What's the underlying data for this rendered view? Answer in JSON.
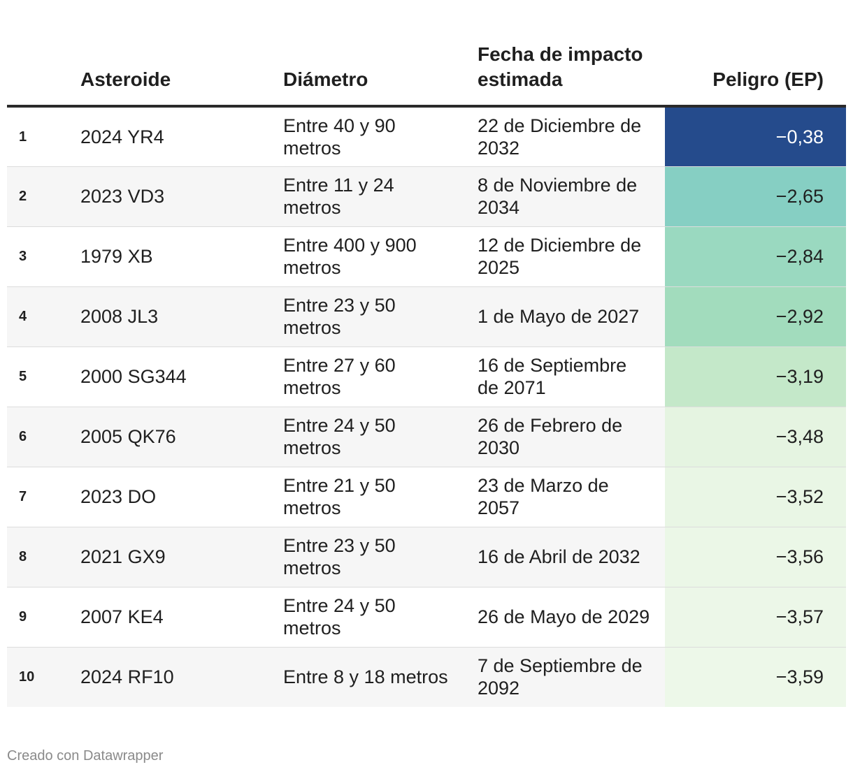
{
  "chart_data": {
    "type": "table",
    "columns": [
      "",
      "Asteroide",
      "Diámetro",
      "Fecha de impacto estimada",
      "Peligro (EP)"
    ],
    "rows": [
      {
        "rank": "1",
        "name": "2024 YR4",
        "diameter": "Entre 40 y 90 metros",
        "date": "22 de Diciembre de 2032",
        "ep": "−0,38",
        "ep_value": -0.38,
        "color": "#254b8c"
      },
      {
        "rank": "2",
        "name": "2023 VD3",
        "diameter": "Entre 11 y 24 metros",
        "date": "8 de Noviembre de 2034",
        "ep": "−2,65",
        "ep_value": -2.65,
        "color": "#86cfc3"
      },
      {
        "rank": "3",
        "name": "1979 XB",
        "diameter": "Entre 400 y 900 metros",
        "date": "12 de Diciembre de 2025",
        "ep": "−2,84",
        "ep_value": -2.84,
        "color": "#9ad9c0"
      },
      {
        "rank": "4",
        "name": "2008 JL3",
        "diameter": "Entre 23 y 50 metros",
        "date": "1 de Mayo de 2027",
        "ep": "−2,92",
        "ep_value": -2.92,
        "color": "#a2dcbd"
      },
      {
        "rank": "5",
        "name": "2000 SG344",
        "diameter": "Entre 27 y 60 metros",
        "date": "16 de Septiembre de 2071",
        "ep": "−3,19",
        "ep_value": -3.19,
        "color": "#c4e8c9"
      },
      {
        "rank": "6",
        "name": "2005 QK76",
        "diameter": "Entre 24 y 50 metros",
        "date": "26 de Febrero de 2030",
        "ep": "−3,48",
        "ep_value": -3.48,
        "color": "#e5f4e1"
      },
      {
        "rank": "7",
        "name": "2023 DO",
        "diameter": "Entre 21 y 50 metros",
        "date": "23 de Marzo de 2057",
        "ep": "−3,52",
        "ep_value": -3.52,
        "color": "#e9f6e5"
      },
      {
        "rank": "8",
        "name": "2021 GX9",
        "diameter": "Entre 23 y 50 metros",
        "date": "16 de Abril de 2032",
        "ep": "−3,56",
        "ep_value": -3.56,
        "color": "#ebf7e7"
      },
      {
        "rank": "9",
        "name": "2007 KE4",
        "diameter": "Entre 24 y 50 metros",
        "date": "26 de Mayo de 2029",
        "ep": "−3,57",
        "ep_value": -3.57,
        "color": "#ecf7e8"
      },
      {
        "rank": "10",
        "name": "2024 RF10",
        "diameter": "Entre 8 y 18 metros",
        "date": "7 de Septiembre de 2092",
        "ep": "−3,59",
        "ep_value": -3.59,
        "color": "#edf8e9"
      }
    ]
  },
  "header": {
    "rank": "",
    "name": "Asteroide",
    "diameter": "Diámetro",
    "date": "Fecha de impacto estimada",
    "ep": "Peligro (EP)"
  },
  "footer": {
    "credit": "Creado con Datawrapper"
  }
}
